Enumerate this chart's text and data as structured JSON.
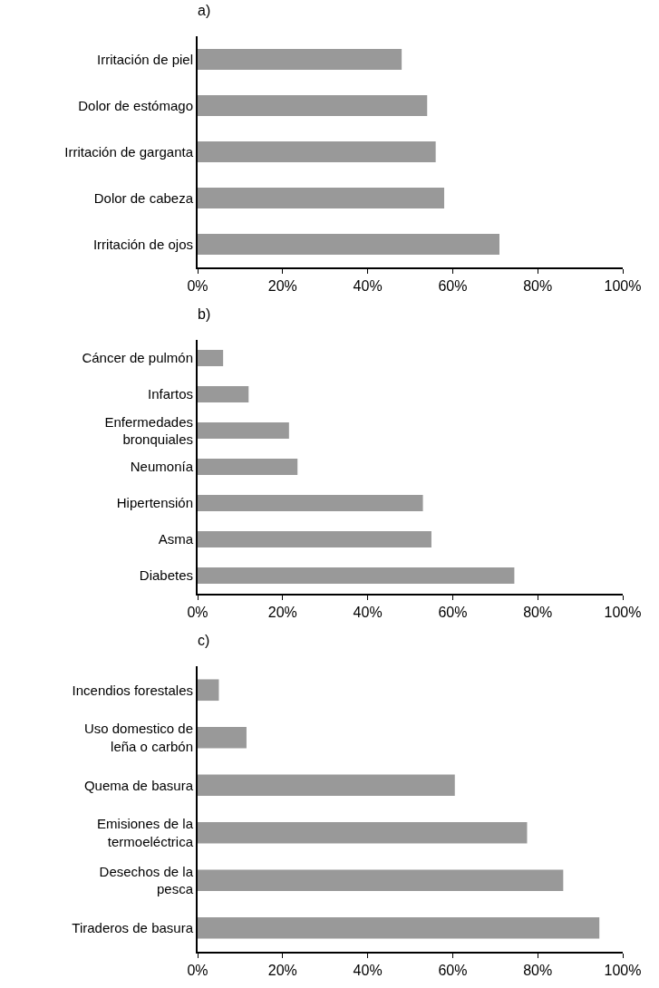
{
  "chart_data": [
    {
      "type": "bar",
      "title": "a)",
      "orientation": "horizontal",
      "categories": [
        "Irritación de piel",
        "Dolor de estómago",
        "Irritación de garganta",
        "Dolor de cabeza",
        "Irritación de ojos"
      ],
      "values": [
        48,
        54,
        56,
        58,
        71
      ],
      "color": "#999999",
      "xlim": [
        0,
        100
      ],
      "xticks": [
        {
          "value": 0,
          "label": "0%"
        },
        {
          "value": 20,
          "label": "20%"
        },
        {
          "value": 40,
          "label": "40%"
        },
        {
          "value": 60,
          "label": "60%"
        },
        {
          "value": 80,
          "label": "80%"
        },
        {
          "value": 100,
          "label": "100%"
        }
      ],
      "grid": false,
      "legend": false
    },
    {
      "type": "bar",
      "title": "b)",
      "orientation": "horizontal",
      "categories": [
        "Cáncer de pulmón",
        "Infartos",
        "Enfermedades\nbronquiales",
        "Neumonía",
        "Hipertensión",
        "Asma",
        "Diabetes"
      ],
      "values": [
        6,
        12,
        21.5,
        23.5,
        53,
        55,
        74.5
      ],
      "color": "#999999",
      "xlim": [
        0,
        100
      ],
      "xticks": [
        {
          "value": 0,
          "label": "0%"
        },
        {
          "value": 20,
          "label": "20%"
        },
        {
          "value": 40,
          "label": "40%"
        },
        {
          "value": 60,
          "label": "60%"
        },
        {
          "value": 80,
          "label": "80%"
        },
        {
          "value": 100,
          "label": "100%"
        }
      ],
      "grid": false,
      "legend": false
    },
    {
      "type": "bar",
      "title": "c)",
      "orientation": "horizontal",
      "categories": [
        "Incendios forestales",
        "Uso domestico de\nleña o carbón",
        "Quema de basura",
        "Emisiones de la\ntermoeléctrica",
        "Desechos de la\npesca",
        "Tiraderos de basura"
      ],
      "values": [
        5,
        11.5,
        60.5,
        77.5,
        86,
        94.5
      ],
      "color": "#999999",
      "xlim": [
        0,
        100
      ],
      "xticks": [
        {
          "value": 0,
          "label": "0%"
        },
        {
          "value": 20,
          "label": "20%"
        },
        {
          "value": 40,
          "label": "40%"
        },
        {
          "value": 60,
          "label": "60%"
        },
        {
          "value": 80,
          "label": "80%"
        },
        {
          "value": 100,
          "label": "100%"
        }
      ],
      "grid": false,
      "legend": false
    }
  ]
}
